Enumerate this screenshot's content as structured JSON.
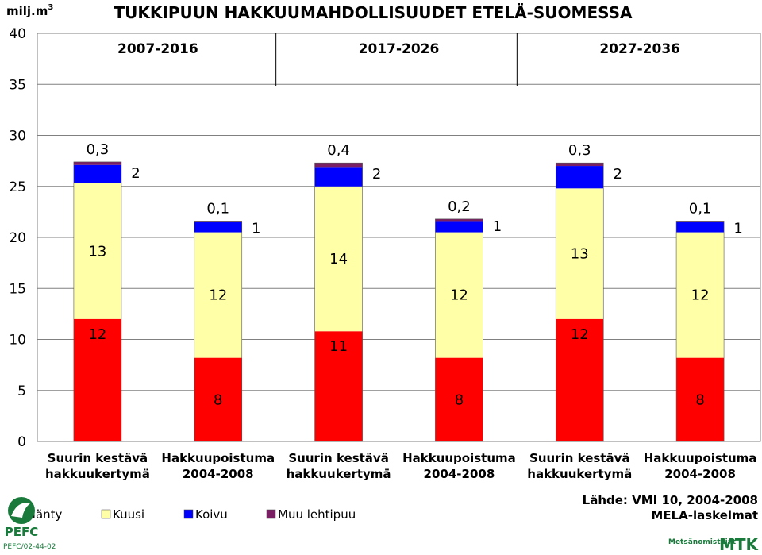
{
  "unit": {
    "base": "milj.m",
    "sup": "3"
  },
  "title": "TUKKIPUUN HAKKUUMAHDOLLISUUDET ETELÄ-SUOMESSA",
  "source": {
    "line1": "Lähde: VMI 10, 2004-2008",
    "line2": "MELA-laskelmat"
  },
  "logos": {
    "pefc": "PEFC",
    "pefc_code": "PEFC/02-44-02",
    "org": "Metsänomistajat",
    "mtk": "MTK"
  },
  "colors": {
    "manty": "#ff0000",
    "kuusi": "#ffffa8",
    "koivu": "#0000ff",
    "muu": "#7a1f63"
  },
  "chart_data": {
    "type": "bar",
    "stacked": true,
    "ylim": [
      0,
      40
    ],
    "yticks": [
      0,
      5,
      10,
      15,
      20,
      25,
      30,
      35,
      40
    ],
    "grid": true,
    "legend_position": "bottom-left",
    "periods": [
      "2007-2016",
      "2017-2026",
      "2027-2036"
    ],
    "categories": [
      [
        "Suurin kestävä",
        "hakkuukertymä"
      ],
      [
        "Hakkuupoistuma",
        "2004-2008"
      ],
      [
        "Suurin kestävä",
        "hakkuukertymä"
      ],
      [
        "Hakkuupoistuma",
        "2004-2008"
      ],
      [
        "Suurin kestävä",
        "hakkuukertymä"
      ],
      [
        "Hakkuupoistuma",
        "2004-2008"
      ]
    ],
    "series": [
      {
        "name": "Mänty",
        "values": [
          12,
          8.2,
          10.8,
          8.2,
          12,
          8.2
        ],
        "labels": [
          "12",
          "8",
          "11",
          "8",
          "12",
          "8"
        ]
      },
      {
        "name": "Kuusi",
        "values": [
          13.3,
          12.3,
          14.2,
          12.3,
          12.8,
          12.3
        ],
        "labels": [
          "13",
          "12",
          "14",
          "12",
          "13",
          "12"
        ]
      },
      {
        "name": "Koivu",
        "values": [
          1.8,
          1.0,
          1.9,
          1.1,
          2.2,
          1.0
        ],
        "labels": [
          "2",
          "1",
          "2",
          "1",
          "2",
          "1"
        ]
      },
      {
        "name": "Muu lehtipuu",
        "values": [
          0.3,
          0.1,
          0.4,
          0.2,
          0.3,
          0.1
        ],
        "labels": [
          "0,3",
          "0,1",
          "0,4",
          "0,2",
          "0,3",
          "0,1"
        ]
      }
    ]
  }
}
